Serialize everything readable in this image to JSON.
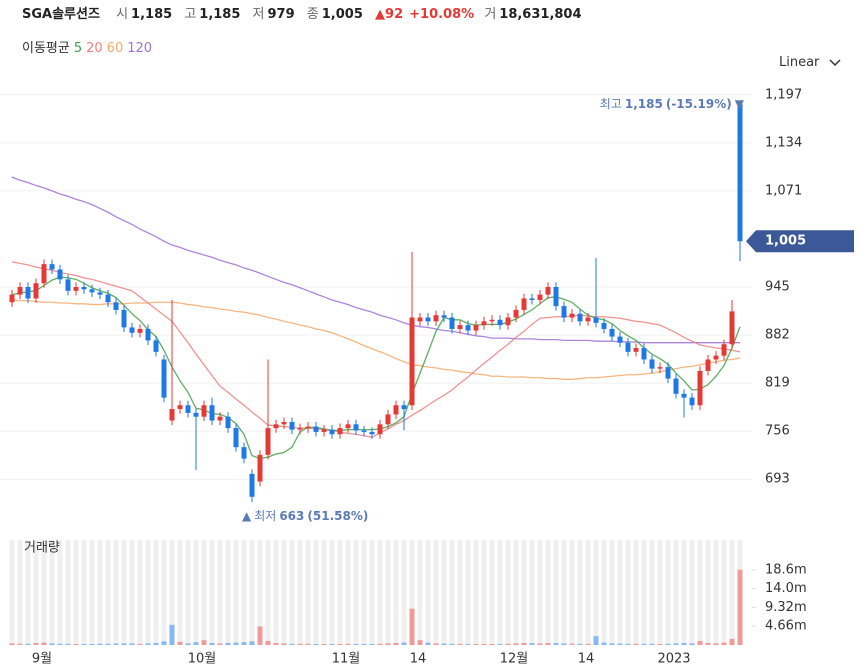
{
  "header": {
    "name": "SGA솔루션즈",
    "items": [
      {
        "label": "시",
        "value": "1,185"
      },
      {
        "label": "고",
        "value": "1,185"
      },
      {
        "label": "저",
        "value": "979"
      },
      {
        "label": "종",
        "value": "1,005"
      }
    ],
    "change": {
      "amount": "▲92",
      "percent": "+10.08%"
    },
    "volume": {
      "label": "거",
      "value": "18,631,804"
    }
  },
  "chart_data": {
    "type": "candlestick",
    "scale": "Linear",
    "legend_title": "이동평균",
    "volume_title": "거래량",
    "up_color": "#e53935",
    "down_color": "#1e78e6",
    "categories": [
      null,
      null,
      null,
      null,
      "9월",
      null,
      null,
      null,
      null,
      null,
      null,
      null,
      null,
      null,
      null,
      null,
      null,
      null,
      null,
      null,
      null,
      null,
      null,
      null,
      "10월",
      null,
      null,
      null,
      null,
      null,
      null,
      null,
      null,
      null,
      null,
      null,
      null,
      null,
      null,
      null,
      null,
      null,
      "11월",
      null,
      null,
      null,
      null,
      null,
      null,
      null,
      null,
      "14",
      null,
      null,
      null,
      null,
      null,
      null,
      null,
      null,
      null,
      null,
      null,
      "12월",
      null,
      null,
      null,
      null,
      null,
      null,
      null,
      null,
      "14",
      null,
      null,
      null,
      null,
      null,
      null,
      null,
      null,
      null,
      null,
      "2023",
      null,
      null,
      null,
      null,
      null,
      null,
      null,
      null
    ],
    "open": [
      925,
      935,
      945,
      930,
      950,
      975,
      968,
      955,
      940,
      945,
      942,
      938,
      935,
      925,
      915,
      892,
      885,
      890,
      875,
      850,
      770,
      785,
      790,
      780,
      775,
      790,
      770,
      775,
      760,
      735,
      700,
      690,
      725,
      760,
      765,
      768,
      758,
      760,
      762,
      755,
      758,
      752,
      760,
      765,
      757,
      755,
      752,
      765,
      778,
      790,
      790,
      900,
      905,
      900,
      908,
      905,
      890,
      895,
      888,
      895,
      900,
      902,
      895,
      905,
      915,
      930,
      928,
      935,
      945,
      920,
      905,
      910,
      900,
      905,
      898,
      890,
      880,
      872,
      860,
      865,
      850,
      838,
      840,
      825,
      805,
      800,
      790,
      835,
      850,
      855,
      870,
      1185
    ],
    "high": [
      941,
      951,
      951,
      956,
      981,
      981,
      974,
      961,
      951,
      951,
      948,
      944,
      941,
      931,
      921,
      898,
      896,
      896,
      881,
      856,
      928,
      796,
      796,
      786,
      796,
      800,
      781,
      781,
      766,
      741,
      706,
      731,
      850,
      771,
      774,
      774,
      766,
      768,
      768,
      764,
      764,
      766,
      771,
      771,
      763,
      761,
      771,
      784,
      796,
      796,
      991,
      911,
      911,
      914,
      914,
      911,
      901,
      901,
      901,
      906,
      908,
      908,
      911,
      921,
      936,
      936,
      941,
      951,
      951,
      926,
      916,
      916,
      911,
      983,
      904,
      896,
      886,
      878,
      871,
      871,
      856,
      846,
      846,
      831,
      811,
      806,
      841,
      856,
      861,
      876,
      928,
      1185
    ],
    "low": [
      919,
      929,
      924,
      924,
      944,
      962,
      949,
      934,
      934,
      936,
      932,
      929,
      919,
      909,
      886,
      879,
      879,
      869,
      854,
      794,
      764,
      779,
      774,
      705,
      769,
      764,
      764,
      754,
      729,
      714,
      663,
      684,
      719,
      754,
      759,
      752,
      752,
      754,
      749,
      749,
      746,
      746,
      754,
      751,
      749,
      746,
      746,
      759,
      772,
      757,
      784,
      894,
      894,
      894,
      899,
      884,
      884,
      882,
      882,
      889,
      894,
      889,
      889,
      899,
      909,
      922,
      922,
      929,
      914,
      899,
      899,
      894,
      894,
      892,
      884,
      874,
      866,
      854,
      854,
      844,
      832,
      832,
      819,
      799,
      774,
      784,
      784,
      829,
      844,
      849,
      864,
      979
    ],
    "close": [
      935,
      945,
      930,
      950,
      975,
      968,
      955,
      940,
      945,
      942,
      938,
      935,
      925,
      915,
      892,
      885,
      890,
      875,
      860,
      800,
      785,
      790,
      780,
      775,
      790,
      770,
      775,
      760,
      735,
      720,
      670,
      725,
      760,
      765,
      768,
      758,
      760,
      762,
      755,
      758,
      752,
      760,
      765,
      757,
      755,
      752,
      765,
      778,
      790,
      785,
      905,
      905,
      900,
      908,
      905,
      890,
      895,
      888,
      895,
      900,
      902,
      895,
      905,
      915,
      930,
      928,
      935,
      945,
      920,
      905,
      910,
      900,
      905,
      898,
      890,
      880,
      872,
      860,
      865,
      850,
      838,
      840,
      825,
      805,
      800,
      790,
      835,
      850,
      855,
      870,
      913,
      1005
    ],
    "volume": [
      400000,
      350000,
      300000,
      500000,
      600000,
      400000,
      300000,
      300000,
      250000,
      250000,
      250000,
      300000,
      300000,
      350000,
      400000,
      400000,
      300000,
      400000,
      500000,
      900000,
      5000000,
      800000,
      400000,
      700000,
      1200000,
      500000,
      400000,
      500000,
      600000,
      700000,
      900000,
      4600000,
      1000000,
      500000,
      400000,
      300000,
      300000,
      300000,
      250000,
      250000,
      250000,
      250000,
      300000,
      250000,
      250000,
      250000,
      300000,
      400000,
      500000,
      600000,
      9000000,
      1200000,
      600000,
      400000,
      350000,
      300000,
      300000,
      250000,
      250000,
      250000,
      250000,
      250000,
      300000,
      400000,
      500000,
      450000,
      400000,
      500000,
      500000,
      400000,
      350000,
      300000,
      300000,
      2200000,
      600000,
      400000,
      350000,
      300000,
      300000,
      300000,
      300000,
      250000,
      300000,
      400000,
      500000,
      400000,
      1000000,
      500000,
      400000,
      600000,
      1500000,
      18631804
    ],
    "moving_averages": [
      {
        "name": "5",
        "color": "#43a047",
        "values": [
          935,
          937,
          939,
          940,
          947,
          954,
          958,
          957,
          955,
          950,
          944,
          940,
          937,
          931,
          921,
          910,
          901,
          889,
          880,
          862,
          840,
          822,
          807,
          786,
          784,
          779,
          778,
          774,
          766,
          752,
          724,
          720,
          722,
          726,
          728,
          735,
          755,
          761,
          761,
          759,
          757,
          757,
          758,
          758,
          758,
          758,
          759,
          762,
          767,
          775,
          805,
          832,
          859,
          887,
          905,
          902,
          902,
          897,
          895,
          896,
          896,
          896,
          899,
          903,
          909,
          915,
          923,
          931,
          932,
          929,
          925,
          916,
          908,
          904,
          902,
          897,
          888,
          881,
          875,
          865,
          857,
          851,
          844,
          832,
          822,
          810,
          811,
          817,
          828,
          842,
          865,
          893
        ]
      },
      {
        "name": "20",
        "color": "#ef8080",
        "values": [
          978,
          976,
          974,
          971,
          969,
          967,
          964,
          962,
          960,
          957,
          955,
          952,
          949,
          946,
          943,
          940,
          932,
          924,
          916,
          908,
          900,
          886,
          872,
          857,
          843,
          829,
          815,
          807,
          798,
          790,
          781,
          773,
          764,
          763,
          762,
          761,
          760,
          760,
          759,
          758,
          757,
          755,
          753,
          752,
          750,
          748,
          754,
          759,
          765,
          770,
          777,
          783,
          790,
          797,
          803,
          810,
          819,
          827,
          836,
          845,
          853,
          862,
          870,
          879,
          887,
          896,
          904,
          905,
          906,
          906,
          907,
          908,
          907,
          906,
          906,
          905,
          904,
          902,
          900,
          899,
          897,
          895,
          890,
          885,
          879,
          874,
          869,
          867,
          865,
          864,
          862,
          860
        ]
      },
      {
        "name": "60",
        "color": "#f4a86a",
        "values": [
          928,
          927,
          927,
          926,
          925,
          925,
          924,
          924,
          923,
          923,
          922,
          922,
          923,
          923,
          923,
          924,
          924,
          924,
          925,
          925,
          925,
          924,
          922,
          921,
          919,
          918,
          916,
          915,
          913,
          912,
          910,
          908,
          905,
          903,
          900,
          898,
          895,
          893,
          890,
          888,
          885,
          881,
          877,
          873,
          868,
          864,
          860,
          856,
          851,
          847,
          843,
          842,
          840,
          839,
          837,
          836,
          834,
          833,
          831,
          830,
          828,
          828,
          827,
          827,
          827,
          826,
          826,
          825,
          825,
          824,
          824,
          825,
          826,
          826,
          827,
          828,
          829,
          830,
          830,
          831,
          832,
          834,
          836,
          838,
          840,
          841,
          843,
          845,
          847,
          849,
          850,
          852
        ]
      },
      {
        "name": "120",
        "color": "#a070d8",
        "values": [
          1089,
          1085,
          1082,
          1078,
          1075,
          1071,
          1067,
          1064,
          1060,
          1057,
          1053,
          1048,
          1043,
          1037,
          1032,
          1027,
          1021,
          1016,
          1011,
          1005,
          1000,
          997,
          993,
          990,
          987,
          984,
          980,
          977,
          974,
          970,
          967,
          963,
          959,
          955,
          951,
          948,
          944,
          940,
          936,
          932,
          928,
          925,
          922,
          918,
          915,
          912,
          908,
          905,
          902,
          898,
          895,
          893,
          892,
          890,
          888,
          887,
          885,
          883,
          881,
          880,
          878,
          878,
          878,
          877,
          877,
          877,
          876,
          876,
          876,
          875,
          875,
          875,
          875,
          874,
          874,
          874,
          873,
          873,
          873,
          872,
          872,
          872,
          872,
          872,
          872,
          872,
          872,
          872,
          872,
          872,
          872,
          872
        ]
      }
    ],
    "ylim": [
      633,
      1219
    ],
    "yticks": [
      693,
      756,
      819,
      882,
      945,
      {
        "value": 1071,
        "label": "1,071"
      },
      {
        "value": 1134,
        "label": "1,134"
      },
      {
        "value": 1197,
        "label": "1,197"
      }
    ],
    "current_price": {
      "value": 1005,
      "label": "1,005"
    },
    "max_annotation": {
      "label": "최고",
      "value": "1,185",
      "change": "(-15.19%)"
    },
    "min_annotation": {
      "label": "최저",
      "value": "663",
      "change": "(51.58%)"
    },
    "volume_ylim": [
      0,
      26000000
    ],
    "volume_yticks": [
      {
        "value": 4660000,
        "label": "4.66m"
      },
      {
        "value": 9320000,
        "label": "9.32m"
      },
      {
        "value": 14000000,
        "label": "14.0m"
      },
      {
        "value": 18600000,
        "label": "18.6m"
      }
    ]
  }
}
